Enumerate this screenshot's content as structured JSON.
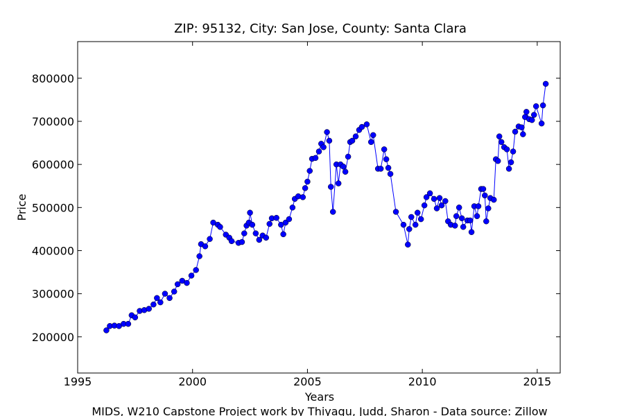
{
  "chart_data": {
    "type": "line",
    "title": "ZIP: 95132, City: San Jose, County: Santa Clara",
    "xlabel": "Years",
    "ylabel": "Price",
    "footer": "MIDS, W210 Capstone Project work by Thiyagu, Judd, Sharon  -  Data source: Zillow",
    "xlim": [
      1995,
      2016
    ],
    "xticks": [
      1995,
      2000,
      2005,
      2010,
      2015
    ],
    "ylim": [
      116000,
      885000
    ],
    "yticks": [
      200000,
      300000,
      400000,
      500000,
      600000,
      700000,
      800000
    ],
    "grid": false,
    "series": [
      {
        "name": "Price",
        "color": "#0000ff",
        "x": [
          1996.25,
          1996.4,
          1996.6,
          1996.8,
          1997.0,
          1997.2,
          1997.35,
          1997.5,
          1997.7,
          1997.9,
          1998.1,
          1998.3,
          1998.45,
          1998.6,
          1998.8,
          1999.0,
          1999.2,
          1999.35,
          1999.55,
          1999.75,
          1999.95,
          2000.15,
          2000.3,
          2000.37,
          2000.55,
          2000.75,
          2000.9,
          2001.1,
          2001.2,
          2001.45,
          2001.6,
          2001.7,
          2002.0,
          2002.15,
          2002.25,
          2002.35,
          2002.45,
          2002.5,
          2002.6,
          2002.75,
          2002.9,
          2003.05,
          2003.2,
          2003.35,
          2003.45,
          2003.65,
          2003.85,
          2003.95,
          2004.05,
          2004.2,
          2004.35,
          2004.45,
          2004.6,
          2004.8,
          2004.9,
          2005.0,
          2005.1,
          2005.2,
          2005.35,
          2005.5,
          2005.6,
          2005.7,
          2005.85,
          2005.95,
          2006.02,
          2006.11,
          2006.26,
          2006.35,
          2006.44,
          2006.56,
          2006.65,
          2006.77,
          2006.86,
          2006.95,
          2007.1,
          2007.25,
          2007.37,
          2007.58,
          2007.77,
          2007.86,
          2008.07,
          2008.19,
          2008.34,
          2008.43,
          2008.52,
          2008.61,
          2008.85,
          2009.18,
          2009.37,
          2009.43,
          2009.52,
          2009.7,
          2009.79,
          2009.94,
          2010.09,
          2010.18,
          2010.33,
          2010.51,
          2010.63,
          2010.75,
          2010.84,
          2011.0,
          2011.12,
          2011.24,
          2011.42,
          2011.48,
          2011.6,
          2011.72,
          2011.78,
          2011.96,
          2012.08,
          2012.14,
          2012.26,
          2012.38,
          2012.44,
          2012.56,
          2012.65,
          2012.72,
          2012.78,
          2012.87,
          2012.96,
          2013.11,
          2013.2,
          2013.29,
          2013.35,
          2013.44,
          2013.56,
          2013.68,
          2013.77,
          2013.86,
          2013.95,
          2014.04,
          2014.19,
          2014.32,
          2014.38,
          2014.47,
          2014.53,
          2014.65,
          2014.77,
          2014.86,
          2014.95,
          2015.19,
          2015.25,
          2015.37
        ],
        "values": [
          215000,
          225000,
          226000,
          225000,
          230000,
          230000,
          250000,
          245000,
          260000,
          262000,
          265000,
          275000,
          290000,
          280000,
          300000,
          290000,
          305000,
          322000,
          330000,
          325000,
          342000,
          355000,
          387000,
          415000,
          410000,
          427000,
          465000,
          460000,
          455000,
          437000,
          430000,
          422000,
          418000,
          420000,
          440000,
          458000,
          465000,
          488000,
          460000,
          440000,
          425000,
          435000,
          430000,
          462000,
          475000,
          476000,
          460000,
          438000,
          465000,
          473000,
          500000,
          520000,
          526000,
          524000,
          545000,
          560000,
          585000,
          613000,
          615000,
          630000,
          648000,
          640000,
          675000,
          655000,
          548000,
          490000,
          600000,
          556000,
          600000,
          595000,
          583000,
          618000,
          652000,
          655000,
          665000,
          680000,
          687000,
          693000,
          652000,
          668000,
          590000,
          590000,
          635000,
          612000,
          592000,
          578000,
          490000,
          460000,
          414000,
          450000,
          478000,
          460000,
          488000,
          473000,
          505000,
          524000,
          533000,
          520000,
          498000,
          522000,
          505000,
          515000,
          468000,
          460000,
          458000,
          480000,
          500000,
          475000,
          455000,
          470000,
          470000,
          443000,
          503000,
          480000,
          503000,
          543000,
          543000,
          528000,
          468000,
          498000,
          522000,
          518000,
          612000,
          608000,
          665000,
          652000,
          640000,
          635000,
          590000,
          605000,
          630000,
          676000,
          688000,
          686000,
          670000,
          710000,
          722000,
          705000,
          703000,
          715000,
          735000,
          695000,
          737000,
          787000
        ]
      }
    ]
  }
}
